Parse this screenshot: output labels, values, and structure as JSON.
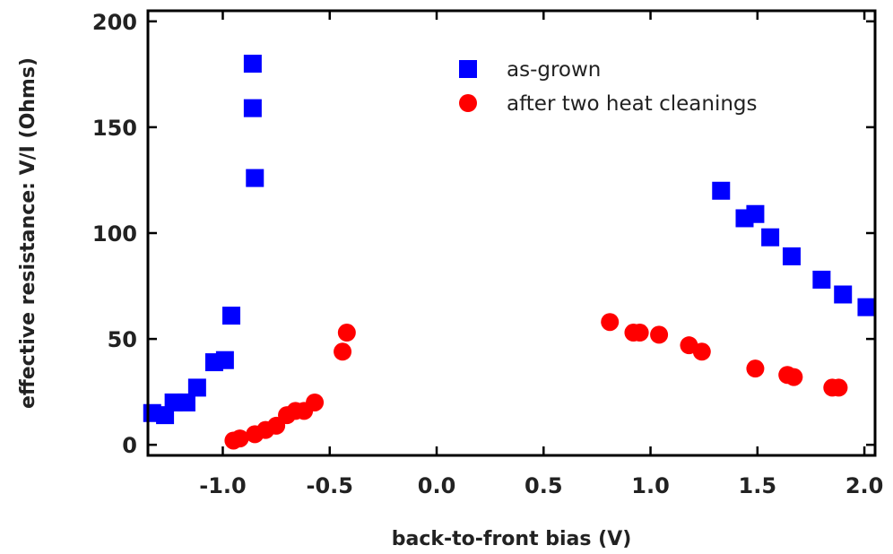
{
  "chart_data": {
    "type": "scatter",
    "title": "",
    "xlabel": "back-to-front bias (V)",
    "ylabel": "effective resistance: V/I (Ohms)",
    "xlim": [
      -1.35,
      2.05
    ],
    "ylim": [
      -5,
      205
    ],
    "xticks": [
      -1.0,
      -0.5,
      0.0,
      0.5,
      1.0,
      1.5,
      2.0
    ],
    "xtick_labels": [
      "-1.0",
      "-0.5",
      "0.0",
      "0.5",
      "1.0",
      "1.5",
      "2.0"
    ],
    "yticks": [
      0,
      50,
      100,
      150,
      200
    ],
    "ytick_labels": [
      "0",
      "50",
      "100",
      "150",
      "200"
    ],
    "grid": false,
    "legend_position": "top-right",
    "series": [
      {
        "name": "as-grown",
        "marker": "square",
        "color": "#0000ff",
        "points": [
          [
            -1.33,
            15
          ],
          [
            -1.27,
            14
          ],
          [
            -1.23,
            20
          ],
          [
            -1.17,
            20
          ],
          [
            -1.12,
            27
          ],
          [
            -1.04,
            39
          ],
          [
            -0.99,
            40
          ],
          [
            -0.96,
            61
          ],
          [
            -0.86,
            180
          ],
          [
            -0.86,
            159
          ],
          [
            -0.85,
            126
          ],
          [
            1.33,
            120
          ],
          [
            1.44,
            107
          ],
          [
            1.49,
            109
          ],
          [
            1.56,
            98
          ],
          [
            1.66,
            89
          ],
          [
            1.8,
            78
          ],
          [
            1.9,
            71
          ],
          [
            2.01,
            65
          ]
        ]
      },
      {
        "name": "after two heat cleanings",
        "marker": "circle",
        "color": "#ff0000",
        "points": [
          [
            -0.95,
            2
          ],
          [
            -0.92,
            3
          ],
          [
            -0.85,
            5
          ],
          [
            -0.8,
            7
          ],
          [
            -0.75,
            9
          ],
          [
            -0.7,
            14
          ],
          [
            -0.66,
            16
          ],
          [
            -0.62,
            16
          ],
          [
            -0.57,
            20
          ],
          [
            -0.44,
            44
          ],
          [
            -0.42,
            53
          ],
          [
            0.81,
            58
          ],
          [
            0.92,
            53
          ],
          [
            0.95,
            53
          ],
          [
            1.04,
            52
          ],
          [
            1.18,
            47
          ],
          [
            1.24,
            44
          ],
          [
            1.49,
            36
          ],
          [
            1.64,
            33
          ],
          [
            1.67,
            32
          ],
          [
            1.85,
            27
          ],
          [
            1.88,
            27
          ]
        ]
      }
    ]
  }
}
